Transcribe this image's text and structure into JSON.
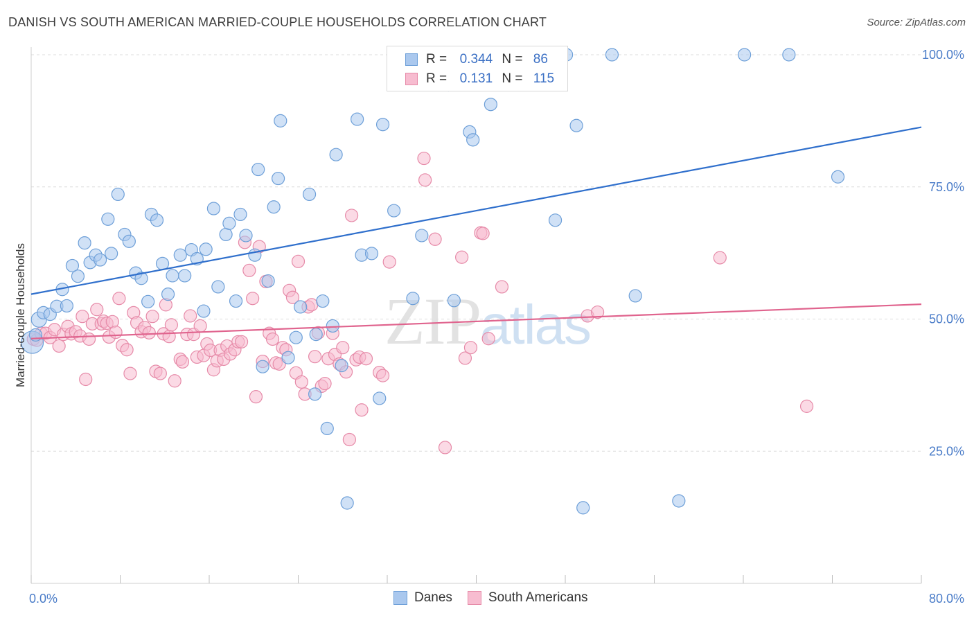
{
  "title": "DANISH VS SOUTH AMERICAN MARRIED-COUPLE HOUSEHOLDS CORRELATION CHART",
  "source": "Source: ZipAtlas.com",
  "watermark": {
    "zip": "ZIP",
    "atlas": "atlas"
  },
  "legend_top": [
    {
      "r_label": "R =",
      "r_value": "0.344",
      "n_label": "N =",
      "n_value": "86"
    },
    {
      "r_label": "R =",
      "r_value": "0.131",
      "n_label": "N =",
      "n_value": "115"
    }
  ],
  "chart_data": {
    "type": "scatter",
    "title": "DANISH VS SOUTH AMERICAN MARRIED-COUPLE HOUSEHOLDS CORRELATION CHART",
    "xlabel": "",
    "ylabel": "Married-couple Households",
    "xlim": [
      0,
      80
    ],
    "ylim": [
      0,
      104
    ],
    "x_tick_labels": [
      "0.0%",
      "80.0%"
    ],
    "y_ticks": [
      25,
      50,
      75,
      100
    ],
    "y_tick_labels": [
      "25.0%",
      "50.0%",
      "75.0%",
      "100.0%"
    ],
    "grid": true,
    "legend_position": "top-center",
    "colors": {
      "Danes": {
        "fill": "#aac8ee",
        "stroke": "#6d9fd8",
        "line": "#2f6fcc"
      },
      "South Americans": {
        "fill": "#f7bcd0",
        "stroke": "#e68aa8",
        "line": "#e0648e"
      }
    },
    "series": [
      {
        "name": "Danes",
        "trend": {
          "x": [
            0,
            80
          ],
          "y": [
            54.7,
            86.3
          ]
        },
        "points": [
          [
            0.1,
            45.6,
            16
          ],
          [
            0.4,
            47,
            9
          ],
          [
            0.7,
            49.9,
            11
          ],
          [
            1.1,
            51.2,
            9
          ],
          [
            1.7,
            50.9,
            9
          ],
          [
            2.3,
            52.4,
            9
          ],
          [
            2.8,
            55.6,
            9
          ],
          [
            3.2,
            52.5,
            9
          ],
          [
            3.7,
            60.1,
            9
          ],
          [
            4.2,
            58.1,
            9
          ],
          [
            4.8,
            64.4,
            9
          ],
          [
            5.3,
            60.7,
            9
          ],
          [
            5.8,
            62.1,
            9
          ],
          [
            6.2,
            61.2,
            9
          ],
          [
            6.9,
            68.9,
            9
          ],
          [
            7.2,
            62.4,
            9
          ],
          [
            7.8,
            73.6,
            9
          ],
          [
            8.4,
            66,
            9
          ],
          [
            8.8,
            64.7,
            9
          ],
          [
            9.4,
            58.7,
            9
          ],
          [
            9.9,
            57.7,
            9
          ],
          [
            10.5,
            53.3,
            9
          ],
          [
            10.8,
            69.8,
            9
          ],
          [
            11.3,
            68.7,
            9
          ],
          [
            11.8,
            60.5,
            9
          ],
          [
            12.3,
            54.7,
            9
          ],
          [
            12.7,
            58.2,
            9
          ],
          [
            13.4,
            62.1,
            9
          ],
          [
            13.8,
            58.2,
            9
          ],
          [
            14.4,
            63.1,
            9
          ],
          [
            14.9,
            61.4,
            9
          ],
          [
            15.5,
            51.5,
            9
          ],
          [
            15.7,
            63.2,
            9
          ],
          [
            16.4,
            70.9,
            9
          ],
          [
            16.8,
            56.1,
            9
          ],
          [
            17.5,
            66,
            9
          ],
          [
            17.8,
            68.1,
            9
          ],
          [
            18.4,
            53.4,
            9
          ],
          [
            18.8,
            69.8,
            9
          ],
          [
            19.3,
            65.8,
            9
          ],
          [
            20.1,
            62.1,
            9
          ],
          [
            20.4,
            78.3,
            9
          ],
          [
            20.8,
            41,
            9
          ],
          [
            21.3,
            57.2,
            9
          ],
          [
            21.8,
            71.2,
            9
          ],
          [
            22.2,
            76.6,
            9
          ],
          [
            22.4,
            87.5,
            9
          ],
          [
            23.1,
            42.7,
            9
          ],
          [
            23.8,
            46.5,
            9
          ],
          [
            24.2,
            52.3,
            9
          ],
          [
            25,
            73.6,
            9
          ],
          [
            25.6,
            47.1,
            9
          ],
          [
            25.5,
            35.8,
            9
          ],
          [
            26.2,
            53.4,
            9
          ],
          [
            26.6,
            29.3,
            9
          ],
          [
            27.1,
            48.7,
            9
          ],
          [
            27.4,
            81.1,
            9
          ],
          [
            27.9,
            41.2,
            9
          ],
          [
            28.4,
            15.2,
            9
          ],
          [
            29.3,
            87.8,
            9
          ],
          [
            29.7,
            62.1,
            9
          ],
          [
            30.6,
            62.4,
            9
          ],
          [
            31.3,
            35,
            9
          ],
          [
            31.6,
            86.8,
            9
          ],
          [
            32.6,
            70.5,
            9
          ],
          [
            34.3,
            53.9,
            9
          ],
          [
            35.1,
            65.8,
            9
          ],
          [
            37.5,
            94.3,
            9
          ],
          [
            38,
            53.5,
            9
          ],
          [
            38.9,
            100,
            9
          ],
          [
            39.4,
            85.4,
            9
          ],
          [
            39.7,
            83.9,
            9
          ],
          [
            41.3,
            90.6,
            9
          ],
          [
            43.3,
            100,
            9
          ],
          [
            44.8,
            100,
            9
          ],
          [
            45.8,
            99.9,
            9
          ],
          [
            47.1,
            68.7,
            9
          ],
          [
            48.1,
            100,
            9
          ],
          [
            49,
            86.6,
            9
          ],
          [
            49.6,
            14.3,
            9
          ],
          [
            52.2,
            100,
            9
          ],
          [
            54.3,
            54.4,
            9
          ],
          [
            58.2,
            15.6,
            9
          ],
          [
            64.1,
            100,
            9
          ],
          [
            68.1,
            100,
            9
          ],
          [
            72.5,
            76.9,
            9
          ]
        ]
      },
      {
        "name": "South Americans",
        "trend": {
          "x": [
            0,
            80
          ],
          "y": [
            46.3,
            52.8
          ]
        },
        "points": [
          [
            0.2,
            46.2,
            9
          ],
          [
            0.5,
            46,
            9
          ],
          [
            0.9,
            47.3,
            9
          ],
          [
            1.3,
            47.3,
            9
          ],
          [
            1.7,
            46.5,
            9
          ],
          [
            2.1,
            48,
            9
          ],
          [
            2.5,
            44.9,
            9
          ],
          [
            2.9,
            47.1,
            9
          ],
          [
            3.3,
            48.6,
            9
          ],
          [
            3.6,
            47.2,
            9
          ],
          [
            4,
            47.6,
            9
          ],
          [
            4.4,
            46.8,
            9
          ],
          [
            4.6,
            50.5,
            9
          ],
          [
            4.9,
            38.6,
            9
          ],
          [
            5.2,
            46.2,
            9
          ],
          [
            5.5,
            49.1,
            9
          ],
          [
            5.9,
            51.8,
            9
          ],
          [
            6.3,
            49.1,
            9
          ],
          [
            6.5,
            49.6,
            9
          ],
          [
            6.8,
            49.2,
            9
          ],
          [
            7,
            46.6,
            9
          ],
          [
            7.3,
            49.5,
            9
          ],
          [
            7.6,
            47.5,
            9
          ],
          [
            7.9,
            53.9,
            9
          ],
          [
            8.2,
            45,
            9
          ],
          [
            8.6,
            44.2,
            9
          ],
          [
            8.9,
            39.7,
            9
          ],
          [
            9.2,
            51.2,
            9
          ],
          [
            9.5,
            49.3,
            9
          ],
          [
            9.9,
            47.6,
            9
          ],
          [
            10.2,
            48.4,
            9
          ],
          [
            10.6,
            47.4,
            9
          ],
          [
            10.9,
            50.5,
            9
          ],
          [
            11.2,
            40.1,
            9
          ],
          [
            11.6,
            39.7,
            9
          ],
          [
            11.9,
            47.2,
            9
          ],
          [
            12.1,
            52.7,
            9
          ],
          [
            12.4,
            46.7,
            9
          ],
          [
            12.6,
            48.9,
            9
          ],
          [
            12.9,
            38.3,
            9
          ],
          [
            13.4,
            42.4,
            9
          ],
          [
            13.6,
            41.9,
            9
          ],
          [
            14,
            47.1,
            9
          ],
          [
            14.3,
            50.6,
            9
          ],
          [
            14.6,
            47.1,
            9
          ],
          [
            14.9,
            42.8,
            9
          ],
          [
            15.2,
            48.7,
            9
          ],
          [
            15.5,
            43.1,
            9
          ],
          [
            15.8,
            45.3,
            9
          ],
          [
            16.1,
            44.1,
            9
          ],
          [
            16.4,
            40.4,
            9
          ],
          [
            16.7,
            42.1,
            9
          ],
          [
            17,
            44.1,
            9
          ],
          [
            17.3,
            42.4,
            9
          ],
          [
            17.6,
            44.9,
            9
          ],
          [
            17.9,
            43.4,
            9
          ],
          [
            18.3,
            44.2,
            9
          ],
          [
            18.6,
            45.7,
            9
          ],
          [
            18.9,
            45.7,
            9
          ],
          [
            19.2,
            64.5,
            9
          ],
          [
            19.6,
            59.2,
            9
          ],
          [
            19.9,
            53.9,
            9
          ],
          [
            20.2,
            35.3,
            9
          ],
          [
            20.5,
            63.7,
            9
          ],
          [
            20.8,
            42,
            9
          ],
          [
            21.1,
            57.1,
            9
          ],
          [
            21.4,
            47.3,
            9
          ],
          [
            21.7,
            46.2,
            9
          ],
          [
            22,
            41.7,
            9
          ],
          [
            22.3,
            41.5,
            9
          ],
          [
            22.6,
            44.6,
            9
          ],
          [
            22.9,
            44.2,
            9
          ],
          [
            23.2,
            55.4,
            9
          ],
          [
            23.5,
            54.1,
            9
          ],
          [
            23.8,
            39.8,
            9
          ],
          [
            24,
            60.9,
            9
          ],
          [
            24.3,
            38.1,
            9
          ],
          [
            24.6,
            35.8,
            9
          ],
          [
            24.9,
            52.3,
            9
          ],
          [
            25.2,
            52.7,
            9
          ],
          [
            25.5,
            42.9,
            9
          ],
          [
            25.8,
            47.4,
            9
          ],
          [
            26.1,
            37.3,
            9
          ],
          [
            26.4,
            37.8,
            9
          ],
          [
            26.7,
            42.5,
            9
          ],
          [
            27.1,
            47.3,
            9
          ],
          [
            27.3,
            43.3,
            9
          ],
          [
            27.7,
            41.5,
            9
          ],
          [
            28,
            44.6,
            9
          ],
          [
            28.3,
            40,
            9
          ],
          [
            28.6,
            27.2,
            9
          ],
          [
            28.8,
            69.6,
            9
          ],
          [
            29.2,
            42.3,
            9
          ],
          [
            29.5,
            42.8,
            9
          ],
          [
            29.7,
            32.8,
            9
          ],
          [
            30.1,
            42.5,
            9
          ],
          [
            31.3,
            39.9,
            9
          ],
          [
            31.6,
            39.3,
            9
          ],
          [
            32.2,
            60.8,
            9
          ],
          [
            35.3,
            80.4,
            9
          ],
          [
            35.4,
            76.3,
            9
          ],
          [
            36.3,
            65.1,
            9
          ],
          [
            37.2,
            25.7,
            9
          ],
          [
            38.7,
            61.7,
            9
          ],
          [
            39,
            42.6,
            9
          ],
          [
            39.5,
            44.6,
            9
          ],
          [
            40.4,
            66.3,
            9
          ],
          [
            40.6,
            66.2,
            9
          ],
          [
            41.1,
            46.3,
            9
          ],
          [
            42.3,
            56.1,
            9
          ],
          [
            50,
            50.6,
            9
          ],
          [
            50.9,
            51.3,
            9
          ],
          [
            61.9,
            61.6,
            9
          ],
          [
            69.7,
            33.5,
            9
          ]
        ]
      }
    ]
  },
  "bottom_legend": [
    {
      "label": "Danes"
    },
    {
      "label": "South Americans"
    }
  ]
}
